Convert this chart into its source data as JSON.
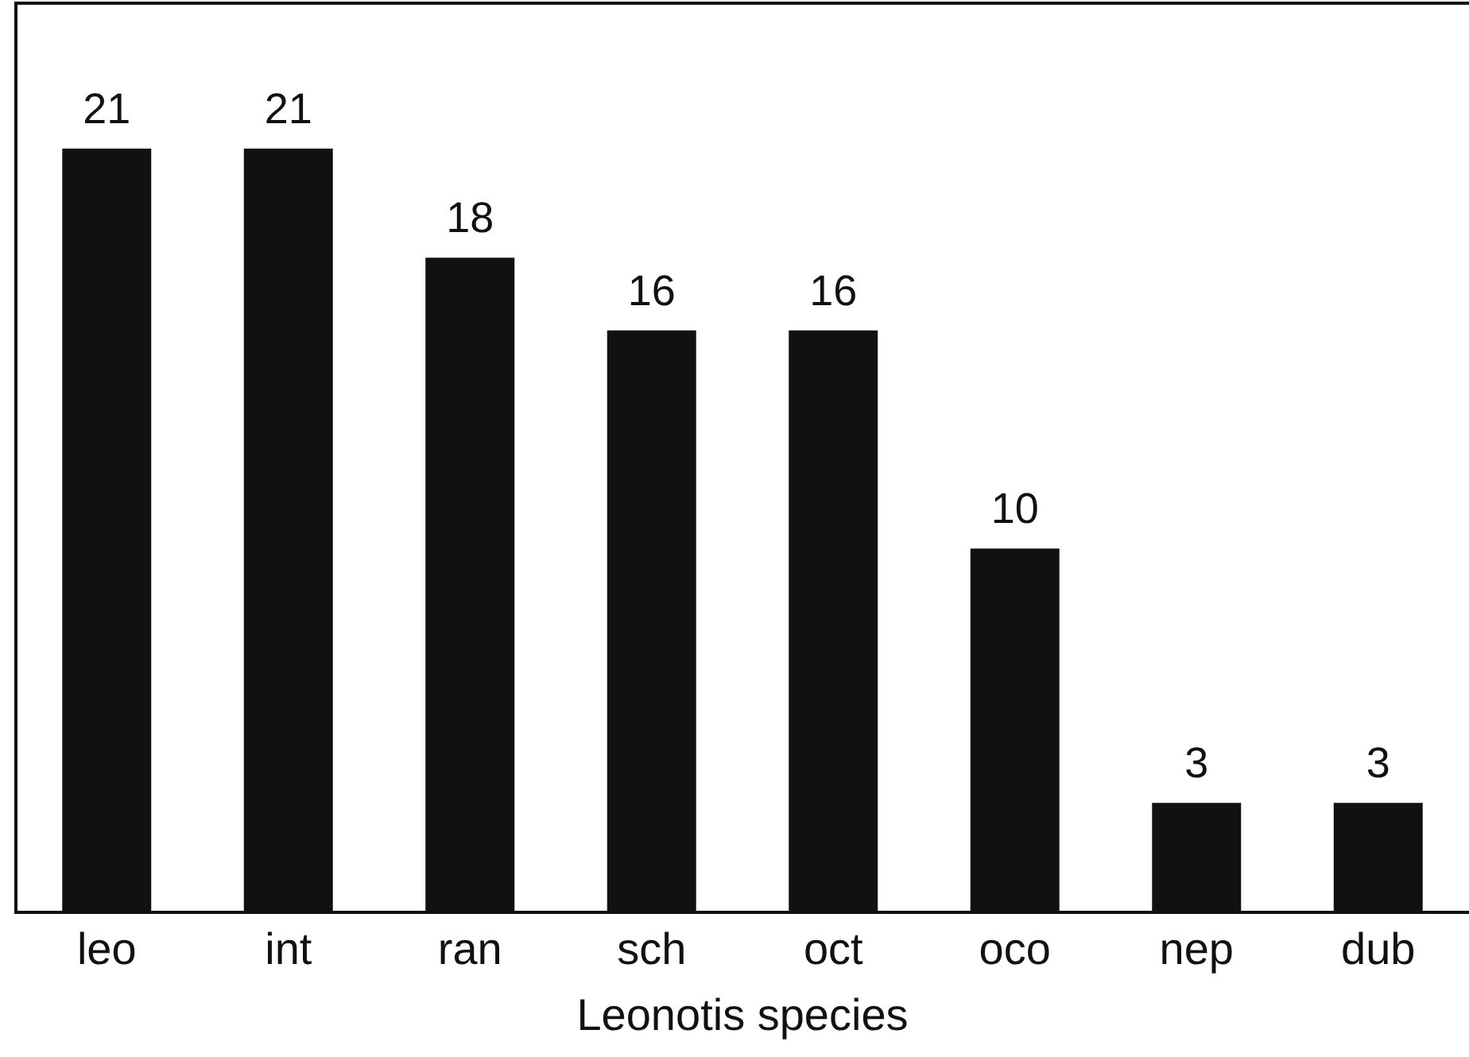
{
  "chart_data": {
    "type": "bar",
    "xlabel": "Leonotis species",
    "categories": [
      "leo",
      "int",
      "ran",
      "sch",
      "oct",
      "oco",
      "nep",
      "dub"
    ],
    "values": [
      21,
      21,
      18,
      16,
      16,
      10,
      3,
      3
    ],
    "color": "#111111",
    "ylim": [
      0,
      25
    ],
    "data_labels": true,
    "grid": false,
    "legend": false
  }
}
